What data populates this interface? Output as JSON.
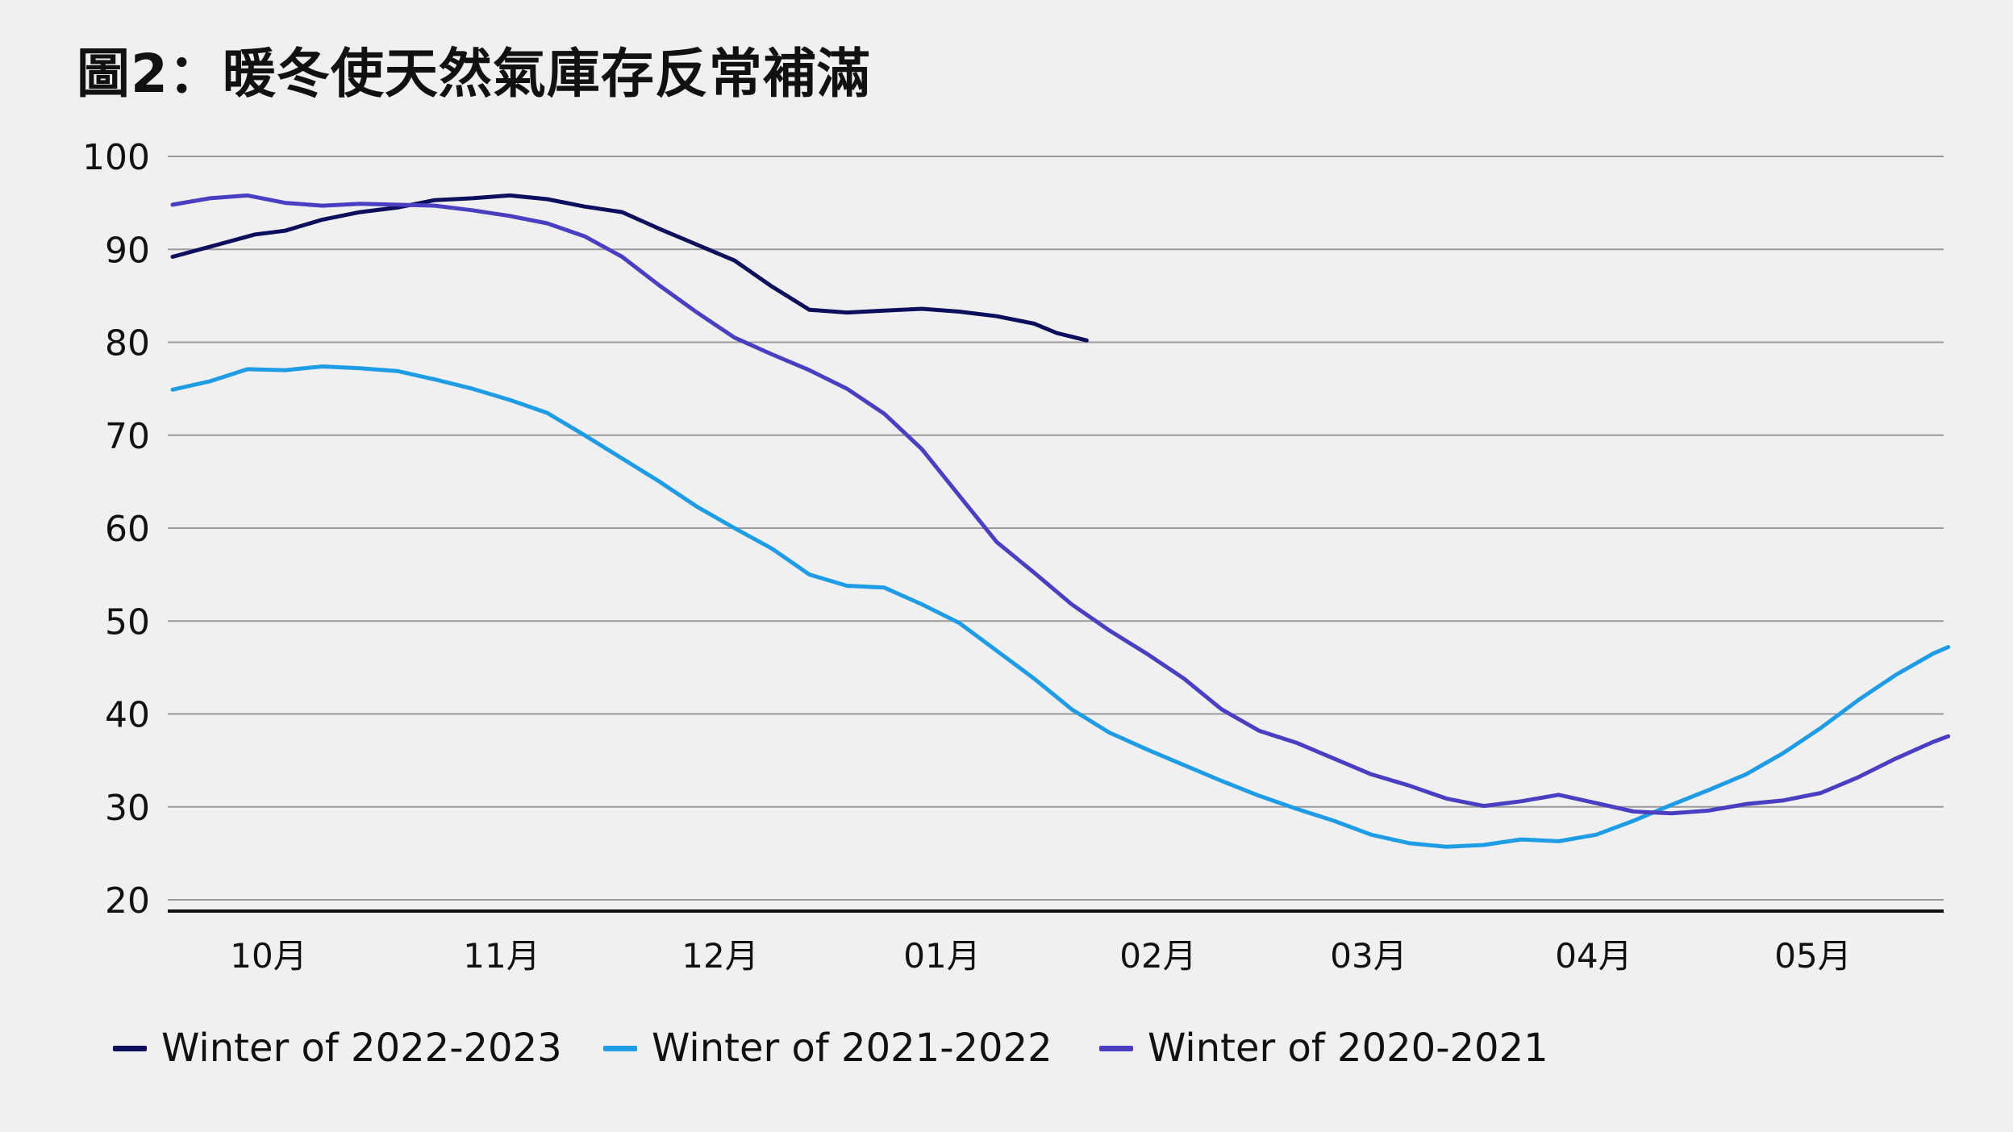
{
  "title": "圖2：暖冬使天然氣庫存反常補滿",
  "chart_data": {
    "type": "line",
    "title": "圖2：暖冬使天然氣庫存反常補滿",
    "xlabel": "",
    "ylabel": "",
    "ylim": [
      20,
      100
    ],
    "yticks": [
      20,
      30,
      40,
      50,
      60,
      70,
      80,
      90,
      100
    ],
    "xlim": [
      -45,
      237
    ],
    "x_unit": "days from the start of October",
    "month_ticks": [
      {
        "label": "10月",
        "x": 15
      },
      {
        "label": "11月",
        "x": 52
      },
      {
        "label": "12月",
        "x": 87
      },
      {
        "label": "01月",
        "x": 122
      },
      {
        "label": "02月",
        "x": 156
      },
      {
        "label": "03月",
        "x": 189
      },
      {
        "label": "04月",
        "x": 225
      },
      {
        "label": "05月",
        "x": 260
      }
    ],
    "grid": true,
    "legend_position": "bottom",
    "series": [
      {
        "name": "Winter of 2022-2023",
        "color": "#0c0f5c",
        "points": [
          [
            0,
            89.2
          ],
          [
            6,
            90.5
          ],
          [
            11,
            91.6
          ],
          [
            15,
            92.0
          ],
          [
            20,
            93.2
          ],
          [
            25,
            94.0
          ],
          [
            30,
            94.5
          ],
          [
            35,
            95.3
          ],
          [
            40,
            95.5
          ],
          [
            45,
            95.8
          ],
          [
            50,
            95.4
          ],
          [
            55,
            94.6
          ],
          [
            60,
            94.0
          ],
          [
            65,
            92.2
          ],
          [
            70,
            90.5
          ],
          [
            75,
            88.8
          ],
          [
            80,
            86.0
          ],
          [
            85,
            83.5
          ],
          [
            90,
            83.2
          ],
          [
            95,
            83.4
          ],
          [
            100,
            83.6
          ],
          [
            105,
            83.3
          ],
          [
            110,
            82.8
          ],
          [
            115,
            82.0
          ],
          [
            118,
            81.0
          ],
          [
            122,
            80.2
          ]
        ]
      },
      {
        "name": "Winter of 2021-2022",
        "color": "#1e9de6",
        "points": [
          [
            0,
            74.9
          ],
          [
            5,
            75.8
          ],
          [
            10,
            77.1
          ],
          [
            15,
            77.0
          ],
          [
            20,
            77.4
          ],
          [
            25,
            77.2
          ],
          [
            30,
            76.9
          ],
          [
            35,
            76.0
          ],
          [
            40,
            75.0
          ],
          [
            45,
            73.8
          ],
          [
            50,
            72.4
          ],
          [
            55,
            70.0
          ],
          [
            60,
            67.5
          ],
          [
            65,
            65.0
          ],
          [
            70,
            62.3
          ],
          [
            75,
            60.0
          ],
          [
            80,
            57.8
          ],
          [
            85,
            55.0
          ],
          [
            90,
            53.8
          ],
          [
            95,
            53.6
          ],
          [
            100,
            51.8
          ],
          [
            105,
            49.8
          ],
          [
            110,
            46.8
          ],
          [
            115,
            43.8
          ],
          [
            120,
            40.5
          ],
          [
            125,
            38.0
          ],
          [
            130,
            36.2
          ],
          [
            135,
            34.5
          ],
          [
            140,
            32.8
          ],
          [
            145,
            31.2
          ],
          [
            150,
            29.8
          ],
          [
            155,
            28.5
          ],
          [
            160,
            27.0
          ],
          [
            165,
            26.1
          ],
          [
            170,
            25.7
          ],
          [
            175,
            25.9
          ],
          [
            180,
            26.5
          ],
          [
            185,
            26.3
          ],
          [
            190,
            27.0
          ],
          [
            195,
            28.5
          ],
          [
            200,
            30.2
          ],
          [
            205,
            31.8
          ],
          [
            210,
            33.5
          ],
          [
            215,
            35.8
          ],
          [
            220,
            38.5
          ],
          [
            225,
            41.5
          ],
          [
            230,
            44.2
          ],
          [
            235,
            46.5
          ],
          [
            237,
            47.2
          ]
        ]
      },
      {
        "name": "Winter of 2020-2021",
        "color": "#4a3fc2",
        "points": [
          [
            0,
            94.8
          ],
          [
            5,
            95.5
          ],
          [
            10,
            95.8
          ],
          [
            15,
            95.0
          ],
          [
            20,
            94.7
          ],
          [
            25,
            94.9
          ],
          [
            30,
            94.8
          ],
          [
            35,
            94.7
          ],
          [
            40,
            94.2
          ],
          [
            45,
            93.6
          ],
          [
            50,
            92.8
          ],
          [
            55,
            91.4
          ],
          [
            60,
            89.2
          ],
          [
            65,
            86.1
          ],
          [
            70,
            83.2
          ],
          [
            75,
            80.5
          ],
          [
            80,
            78.7
          ],
          [
            85,
            77.0
          ],
          [
            90,
            75.0
          ],
          [
            95,
            72.3
          ],
          [
            100,
            68.5
          ],
          [
            105,
            63.5
          ],
          [
            110,
            58.5
          ],
          [
            115,
            55.2
          ],
          [
            120,
            51.8
          ],
          [
            125,
            49.0
          ],
          [
            130,
            46.5
          ],
          [
            135,
            43.8
          ],
          [
            140,
            40.5
          ],
          [
            145,
            38.2
          ],
          [
            150,
            36.9
          ],
          [
            155,
            35.2
          ],
          [
            160,
            33.5
          ],
          [
            165,
            32.3
          ],
          [
            170,
            30.9
          ],
          [
            175,
            30.1
          ],
          [
            180,
            30.6
          ],
          [
            185,
            31.3
          ],
          [
            190,
            30.4
          ],
          [
            195,
            29.5
          ],
          [
            200,
            29.3
          ],
          [
            205,
            29.6
          ],
          [
            210,
            30.3
          ],
          [
            215,
            30.7
          ],
          [
            220,
            31.5
          ],
          [
            225,
            33.2
          ],
          [
            230,
            35.2
          ],
          [
            235,
            37.0
          ],
          [
            237,
            37.6
          ]
        ]
      }
    ]
  },
  "legend": [
    {
      "label": "Winter of 2022-2023",
      "color": "#0c0f5c"
    },
    {
      "label": "Winter of 2021-2022",
      "color": "#1e9de6"
    },
    {
      "label": "Winter of 2020-2021",
      "color": "#4a3fc2"
    }
  ]
}
